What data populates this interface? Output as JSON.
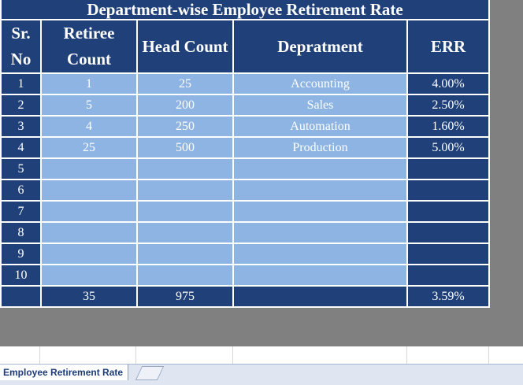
{
  "sheet": {
    "title": "Department-wise Employee Retirement Rate",
    "headers": [
      "Sr. No",
      "Retiree Count",
      "Head Count",
      "Depratment",
      "ERR"
    ],
    "rows": [
      {
        "sr": 1,
        "retiree": 1,
        "head": 25,
        "department": "Accounting",
        "err": "4.00%"
      },
      {
        "sr": 2,
        "retiree": 5,
        "head": 200,
        "department": "Sales",
        "err": "2.50%"
      },
      {
        "sr": 3,
        "retiree": 4,
        "head": 250,
        "department": "Automation",
        "err": "1.60%"
      },
      {
        "sr": 4,
        "retiree": 25,
        "head": 500,
        "department": "Production",
        "err": "5.00%"
      },
      {
        "sr": 5
      },
      {
        "sr": 6
      },
      {
        "sr": 7
      },
      {
        "sr": 8
      },
      {
        "sr": 9
      },
      {
        "sr": 10
      }
    ],
    "total": {
      "retiree": 35,
      "head": 975,
      "err": "3.59%"
    },
    "tab": "Employee Retirement Rate"
  }
}
